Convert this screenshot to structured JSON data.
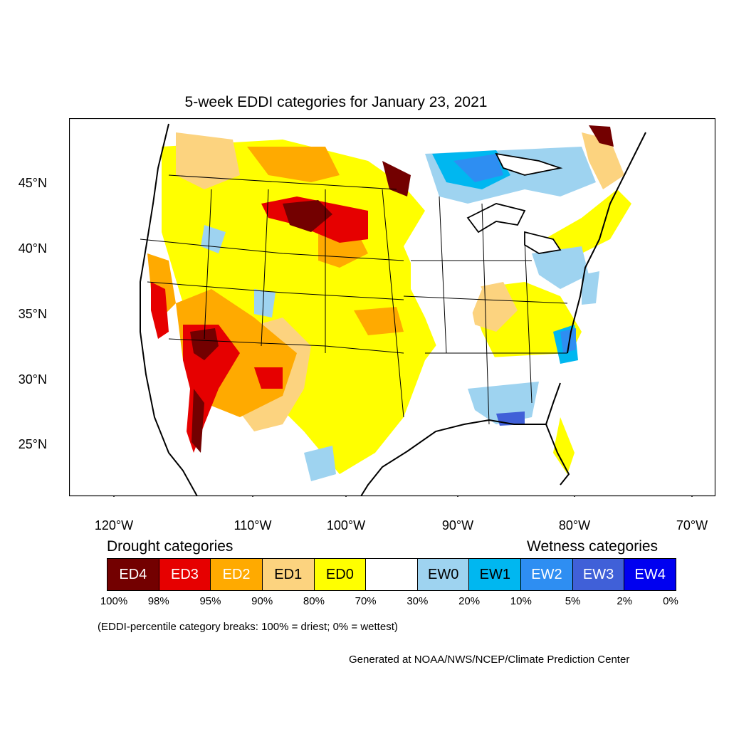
{
  "title": "5-week EDDI categories for January 23, 2021",
  "lat_labels": [
    "45°N",
    "40°N",
    "35°N",
    "30°N",
    "25°N"
  ],
  "lon_labels": [
    "120°W",
    "110°W",
    "100°W",
    "90°W",
    "80°W",
    "70°W"
  ],
  "drought_heading": "Drought categories",
  "wetness_heading": "Wetness categories",
  "categories": [
    {
      "label": "ED4",
      "color": "#730000",
      "text_color": "#ffffff"
    },
    {
      "label": "ED3",
      "color": "#e60000",
      "text_color": "#ffffff"
    },
    {
      "label": "ED2",
      "color": "#ffaa00",
      "text_color": "#ffffff"
    },
    {
      "label": "ED1",
      "color": "#fcd37f",
      "text_color": "#000000"
    },
    {
      "label": "ED0",
      "color": "#ffff00",
      "text_color": "#000000"
    },
    {
      "label": "",
      "color": "#ffffff",
      "text_color": "#000000"
    },
    {
      "label": "EW0",
      "color": "#9ed3f0",
      "text_color": "#000000"
    },
    {
      "label": "EW1",
      "color": "#00b7f0",
      "text_color": "#000000"
    },
    {
      "label": "EW2",
      "color": "#2e8ef2",
      "text_color": "#ffffff"
    },
    {
      "label": "EW3",
      "color": "#4060d8",
      "text_color": "#ffffff"
    },
    {
      "label": "EW4",
      "color": "#0000f0",
      "text_color": "#ffffff"
    }
  ],
  "percent_breaks": [
    "100%",
    "98%",
    "95%",
    "90%",
    "80%",
    "70%",
    "30%",
    "20%",
    "10%",
    "5%",
    "2%",
    "0%"
  ],
  "breaks_note": "(EDDI-percentile category breaks: 100% = driest; 0% = wettest)",
  "credit": "Generated at NOAA/NWS/NCEP/Climate Prediction Center"
}
